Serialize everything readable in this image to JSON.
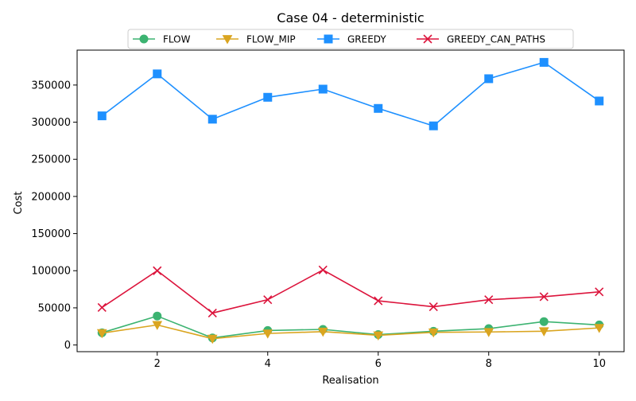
{
  "chart_data": {
    "type": "line",
    "title": "Case 04 - deterministic",
    "xlabel": "Realisation",
    "ylabel": "Cost",
    "x": [
      1,
      2,
      3,
      4,
      5,
      6,
      7,
      8,
      9,
      10
    ],
    "xlim": [
      0.55,
      10.45
    ],
    "ylim": [
      -9000,
      397000
    ],
    "xticks": [
      2,
      4,
      6,
      8,
      10
    ],
    "yticks": [
      0,
      50000,
      100000,
      150000,
      200000,
      250000,
      300000,
      350000
    ],
    "grid": false,
    "legend_position": "top-center",
    "series": [
      {
        "name": "FLOW",
        "color": "#3cb371",
        "marker": "circle",
        "values": [
          16500,
          39000,
          9500,
          19500,
          21000,
          14000,
          18500,
          22000,
          31500,
          27000
        ]
      },
      {
        "name": "FLOW_MIP",
        "color": "#daa520",
        "marker": "triangle-down",
        "values": [
          16000,
          27000,
          8500,
          15500,
          18000,
          13000,
          17000,
          17500,
          18500,
          23000
        ]
      },
      {
        "name": "GREEDY",
        "color": "#1e90ff",
        "marker": "square",
        "values": [
          308500,
          365000,
          304000,
          333500,
          344500,
          318500,
          295000,
          358500,
          380500,
          328500
        ]
      },
      {
        "name": "GREEDY_CAN_PATHS",
        "color": "#dc143c",
        "marker": "x",
        "values": [
          50500,
          100000,
          43000,
          61000,
          101000,
          59500,
          51500,
          61000,
          65000,
          71500
        ]
      }
    ]
  }
}
